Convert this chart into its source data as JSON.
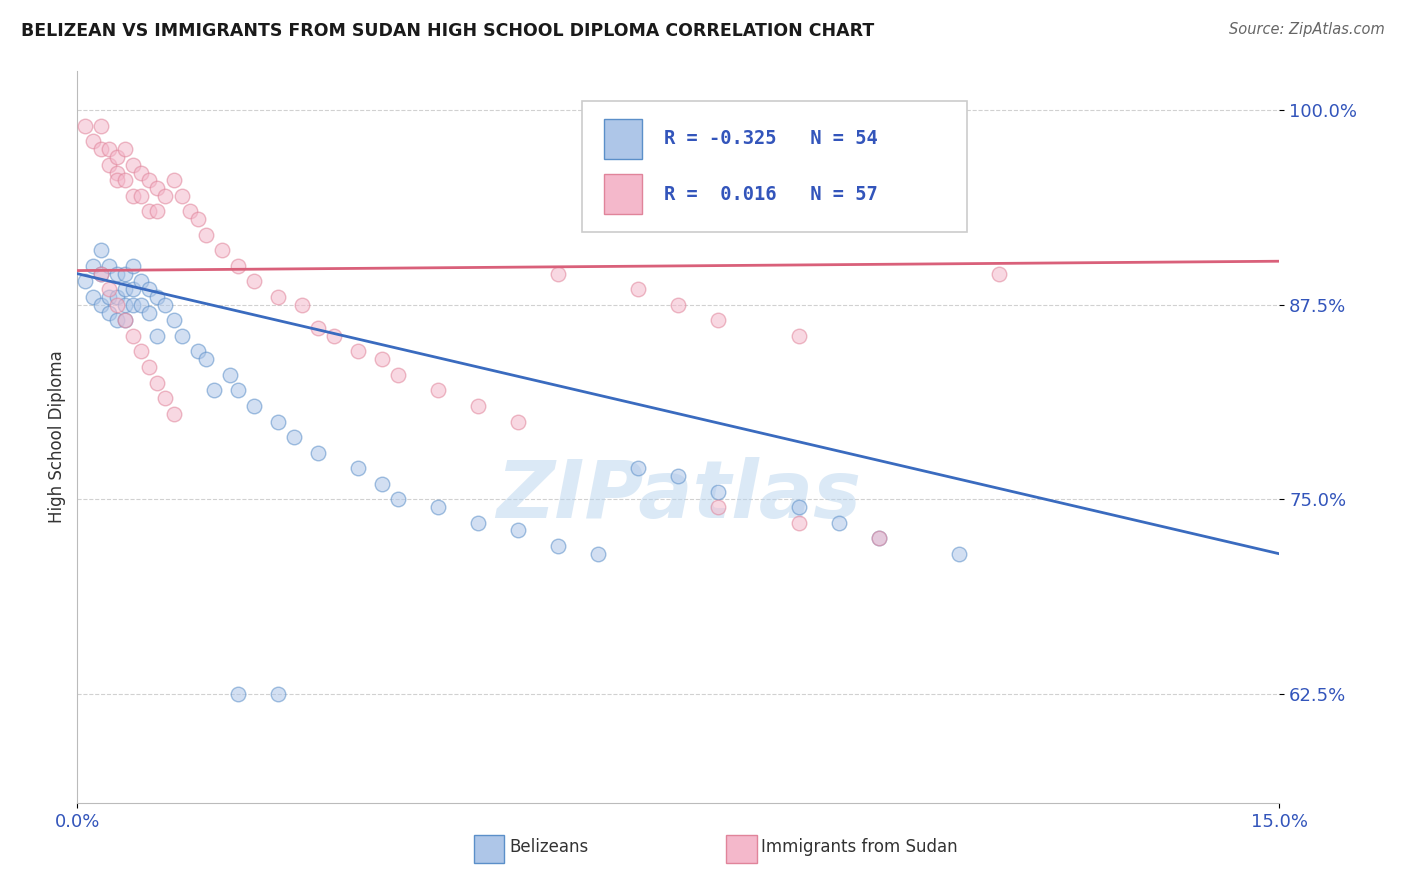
{
  "title": "BELIZEAN VS IMMIGRANTS FROM SUDAN HIGH SCHOOL DIPLOMA CORRELATION CHART",
  "source": "Source: ZipAtlas.com",
  "ylabel": "High School Diploma",
  "xmin": 0.0,
  "xmax": 0.15,
  "ymin": 0.555,
  "ymax": 1.025,
  "yticks": [
    0.625,
    0.75,
    0.875,
    1.0
  ],
  "ytick_labels": [
    "62.5%",
    "75.0%",
    "87.5%",
    "100.0%"
  ],
  "xtick_labels": [
    "0.0%",
    "15.0%"
  ],
  "watermark": "ZIPatlas",
  "blue_R": -0.325,
  "blue_N": 54,
  "pink_R": 0.016,
  "pink_N": 57,
  "blue_fill": "#aec6e8",
  "pink_fill": "#f4b8cb",
  "blue_edge": "#5b8fc9",
  "pink_edge": "#e0849a",
  "blue_line_color": "#3a6bbf",
  "pink_line_color": "#d9607a",
  "blue_label": "Belizeans",
  "pink_label": "Immigrants from Sudan",
  "title_color": "#1a1a1a",
  "source_color": "#666666",
  "axis_label_color": "#333333",
  "tick_color": "#3355bb",
  "background_color": "#ffffff",
  "grid_color": "#cccccc",
  "dot_size": 110,
  "dot_alpha": 0.55,
  "dot_linewidth": 1.0,
  "blue_line_y0": 0.895,
  "blue_line_y1": 0.715,
  "pink_line_y0": 0.897,
  "pink_line_y1": 0.903,
  "blue_x": [
    0.001,
    0.002,
    0.002,
    0.003,
    0.003,
    0.003,
    0.004,
    0.004,
    0.004,
    0.005,
    0.005,
    0.005,
    0.006,
    0.006,
    0.006,
    0.006,
    0.007,
    0.007,
    0.007,
    0.008,
    0.008,
    0.009,
    0.009,
    0.01,
    0.01,
    0.011,
    0.012,
    0.013,
    0.015,
    0.016,
    0.017,
    0.019,
    0.02,
    0.022,
    0.025,
    0.027,
    0.03,
    0.035,
    0.038,
    0.04,
    0.045,
    0.05,
    0.055,
    0.06,
    0.065,
    0.07,
    0.075,
    0.08,
    0.09,
    0.095,
    0.1,
    0.11,
    0.02,
    0.025
  ],
  "blue_y": [
    0.89,
    0.9,
    0.88,
    0.91,
    0.895,
    0.875,
    0.9,
    0.88,
    0.87,
    0.895,
    0.88,
    0.865,
    0.895,
    0.885,
    0.875,
    0.865,
    0.9,
    0.885,
    0.875,
    0.89,
    0.875,
    0.885,
    0.87,
    0.88,
    0.855,
    0.875,
    0.865,
    0.855,
    0.845,
    0.84,
    0.82,
    0.83,
    0.82,
    0.81,
    0.8,
    0.79,
    0.78,
    0.77,
    0.76,
    0.75,
    0.745,
    0.735,
    0.73,
    0.72,
    0.715,
    0.77,
    0.765,
    0.755,
    0.745,
    0.735,
    0.725,
    0.715,
    0.625,
    0.625
  ],
  "pink_x": [
    0.001,
    0.002,
    0.003,
    0.003,
    0.004,
    0.004,
    0.005,
    0.005,
    0.005,
    0.006,
    0.006,
    0.007,
    0.007,
    0.008,
    0.008,
    0.009,
    0.009,
    0.01,
    0.01,
    0.011,
    0.012,
    0.013,
    0.014,
    0.015,
    0.016,
    0.018,
    0.02,
    0.022,
    0.025,
    0.028,
    0.03,
    0.032,
    0.035,
    0.038,
    0.04,
    0.045,
    0.05,
    0.055,
    0.06,
    0.07,
    0.075,
    0.08,
    0.09,
    0.003,
    0.004,
    0.005,
    0.006,
    0.007,
    0.008,
    0.009,
    0.01,
    0.011,
    0.012,
    0.08,
    0.09,
    0.1,
    0.115
  ],
  "pink_y": [
    0.99,
    0.98,
    0.99,
    0.975,
    0.975,
    0.965,
    0.97,
    0.96,
    0.955,
    0.975,
    0.955,
    0.965,
    0.945,
    0.96,
    0.945,
    0.955,
    0.935,
    0.95,
    0.935,
    0.945,
    0.955,
    0.945,
    0.935,
    0.93,
    0.92,
    0.91,
    0.9,
    0.89,
    0.88,
    0.875,
    0.86,
    0.855,
    0.845,
    0.84,
    0.83,
    0.82,
    0.81,
    0.8,
    0.895,
    0.885,
    0.875,
    0.865,
    0.855,
    0.895,
    0.885,
    0.875,
    0.865,
    0.855,
    0.845,
    0.835,
    0.825,
    0.815,
    0.805,
    0.745,
    0.735,
    0.725,
    0.895
  ]
}
